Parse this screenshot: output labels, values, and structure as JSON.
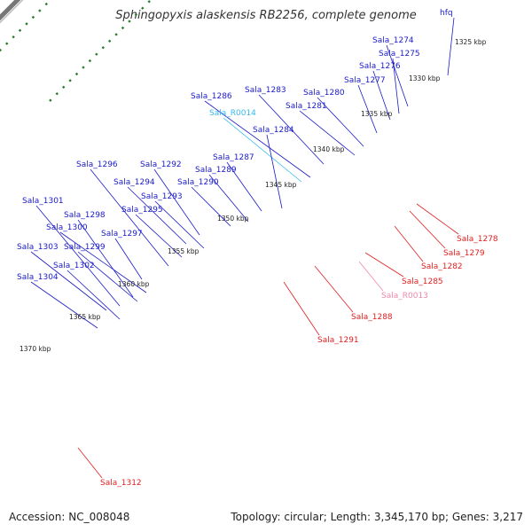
{
  "title": "Sphingopyxis alaskensis RB2256, complete genome",
  "footer": {
    "accession": "Accession: NC_008048",
    "summary": "Topology: circular; Length: 3,345,170 bp; Genes: 3,217"
  },
  "colors": {
    "forward_label": "#1a1ac8",
    "reverse_label": "#e02020",
    "trna_forward_label": "#33bbee",
    "trna_reverse_label": "#ee88aa",
    "backbone": "#888888",
    "ticks": "#2a7a2a"
  },
  "kbp_scale": [
    {
      "label": "1325 kbp"
    },
    {
      "label": "1330 kbp"
    },
    {
      "label": "1335 kbp"
    },
    {
      "label": "1340 kbp"
    },
    {
      "label": "1345 kbp"
    },
    {
      "label": "1350 kbp"
    },
    {
      "label": "1355 kbp"
    },
    {
      "label": "1360 kbp"
    },
    {
      "label": "1365 kbp"
    },
    {
      "label": "1370 kbp"
    }
  ],
  "forward_genes": [
    {
      "name": "hfq"
    },
    {
      "name": "Sala_1274"
    },
    {
      "name": "Sala_1275"
    },
    {
      "name": "Sala_1276"
    },
    {
      "name": "Sala_1277"
    },
    {
      "name": "Sala_1280"
    },
    {
      "name": "Sala_1281"
    },
    {
      "name": "Sala_1283"
    },
    {
      "name": "Sala_1286"
    },
    {
      "name": "Sala_R0014"
    },
    {
      "name": "Sala_1284"
    },
    {
      "name": "Sala_1287"
    },
    {
      "name": "Sala_1289"
    },
    {
      "name": "Sala_1290"
    },
    {
      "name": "Sala_1292"
    },
    {
      "name": "Sala_1294"
    },
    {
      "name": "Sala_1293"
    },
    {
      "name": "Sala_1296"
    },
    {
      "name": "Sala_1295"
    },
    {
      "name": "Sala_1301"
    },
    {
      "name": "Sala_1298"
    },
    {
      "name": "Sala_1300"
    },
    {
      "name": "Sala_1297"
    },
    {
      "name": "Sala_1299"
    },
    {
      "name": "Sala_1303"
    },
    {
      "name": "Sala_1302"
    },
    {
      "name": "Sala_1304"
    }
  ],
  "reverse_genes": [
    {
      "name": "Sala_1278"
    },
    {
      "name": "Sala_1279"
    },
    {
      "name": "Sala_1282"
    },
    {
      "name": "Sala_1285"
    },
    {
      "name": "Sala_R0013"
    },
    {
      "name": "Sala_1288"
    },
    {
      "name": "Sala_1291"
    },
    {
      "name": "Sala_1312"
    }
  ]
}
